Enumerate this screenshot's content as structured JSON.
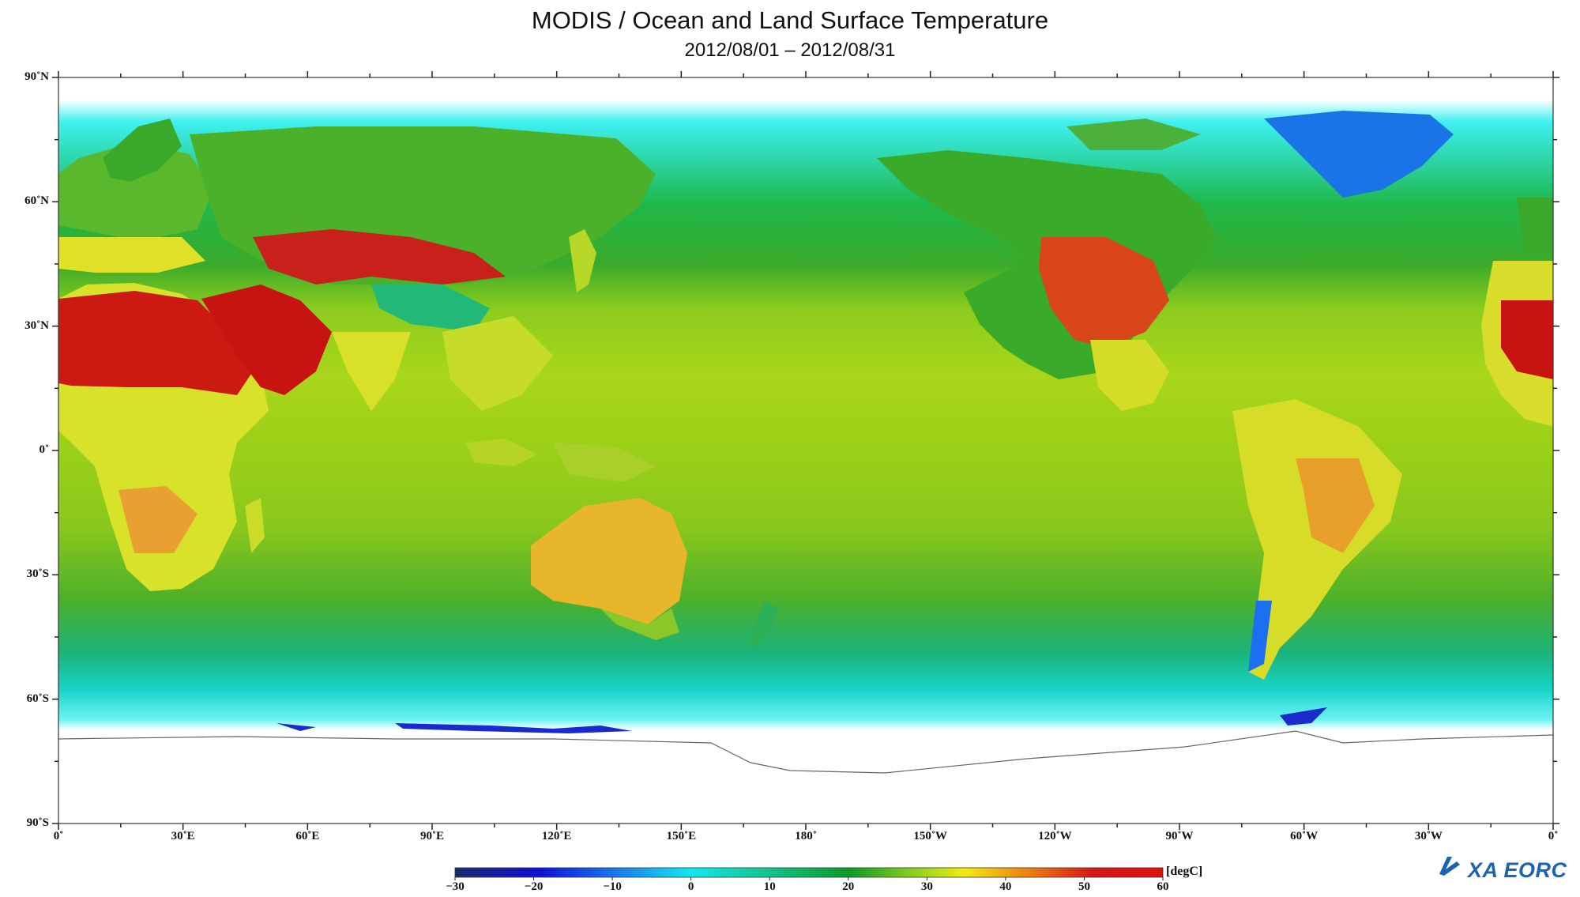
{
  "title": "MODIS / Ocean and Land Surface Temperature",
  "subtitle": "2012/08/01 – 2012/08/31",
  "latitude_labels": [
    "90˚N",
    "60˚N",
    "30˚N",
    "0˚",
    "30˚S",
    "60˚S",
    "90˚S"
  ],
  "longitude_labels": [
    "0˚",
    "30˚E",
    "60˚E",
    "90˚E",
    "120˚E",
    "150˚E",
    "180˚",
    "150˚W",
    "120˚W",
    "90˚W",
    "60˚W",
    "30˚W",
    "0˚"
  ],
  "colorbar": {
    "ticks": [
      "−30",
      "−20",
      "−10",
      "0",
      "10",
      "20",
      "30",
      "40",
      "50",
      "60"
    ],
    "unit": "[degC]",
    "min": -30,
    "max": 60,
    "colors": [
      "#1c2a6b",
      "#1010d8",
      "#1a7cf0",
      "#13e8f0",
      "#12c48a",
      "#0a9a2a",
      "#a6d81a",
      "#f2ec10",
      "#f08a10",
      "#d61818",
      "#e01010"
    ]
  },
  "logo": {
    "text": "XA EORC",
    "icon": "jaxa-logo-icon"
  }
}
